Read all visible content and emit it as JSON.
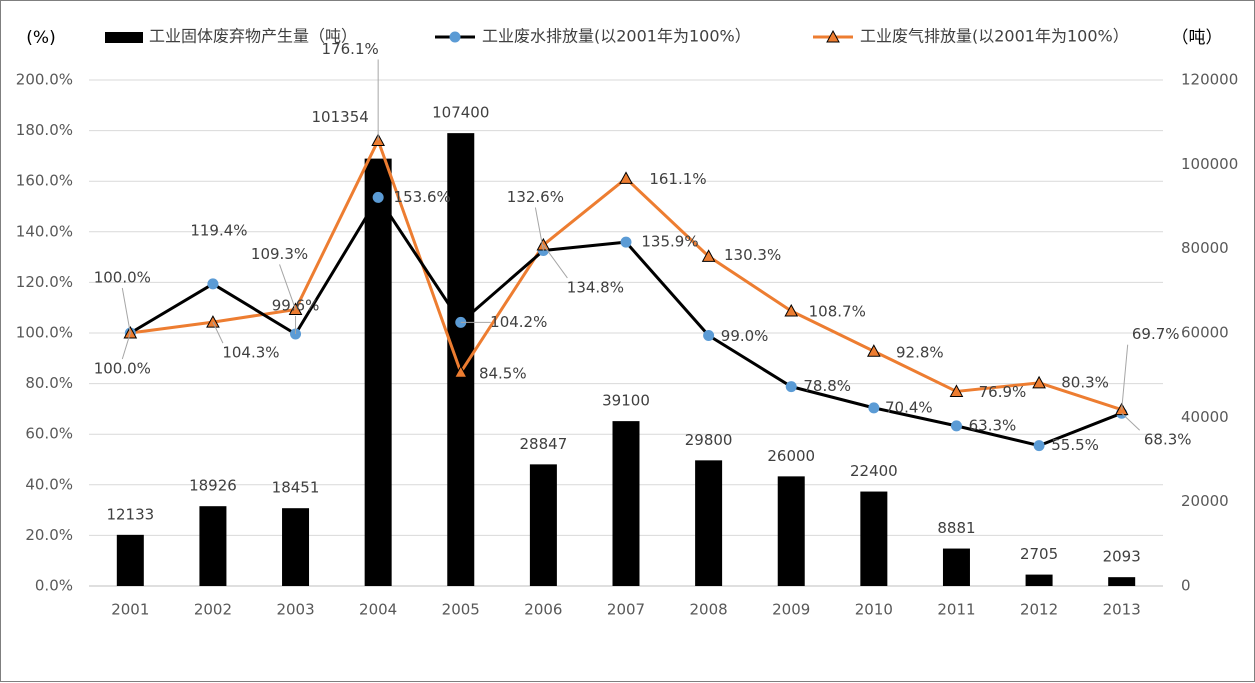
{
  "chart_data": {
    "type": "bar",
    "categories": [
      "2001",
      "2002",
      "2003",
      "2004",
      "2005",
      "2006",
      "2007",
      "2008",
      "2009",
      "2010",
      "2011",
      "2012",
      "2013"
    ],
    "left_axis_unit": "(%)",
    "right_axis_unit": "（吨）",
    "left_ylim": [
      0,
      200
    ],
    "left_ticks": [
      "0.0%",
      "20.0%",
      "40.0%",
      "60.0%",
      "80.0%",
      "100.0%",
      "120.0%",
      "140.0%",
      "160.0%",
      "180.0%",
      "200.0%"
    ],
    "right_ylim": [
      0,
      120000
    ],
    "right_ticks": [
      "0",
      "20000",
      "40000",
      "60000",
      "80000",
      "100000",
      "120000"
    ],
    "grid": true,
    "legend_position": "top",
    "series": [
      {
        "name": "工业固体废弃物产生量（吨）",
        "kind": "bar",
        "axis": "right",
        "color": "#000000",
        "values": [
          12133,
          18926,
          18451,
          101354,
          107400,
          28847,
          39100,
          29800,
          26000,
          22400,
          8881,
          2705,
          2093
        ],
        "labels": [
          "12133",
          "18926",
          "18451",
          "101354",
          "107400",
          "28847",
          "39100",
          "29800",
          "26000",
          "22400",
          "8881",
          "2705",
          "2093"
        ]
      },
      {
        "name": "工业废水排放量(以2001年为100%）",
        "kind": "line",
        "axis": "left",
        "color": "#000000",
        "marker": "circle",
        "marker_color": "#5b9bd5",
        "values": [
          100.0,
          119.4,
          99.6,
          153.6,
          104.2,
          132.6,
          135.9,
          99.0,
          78.8,
          70.4,
          63.3,
          55.5,
          68.3
        ],
        "labels": [
          "100.0%",
          "119.4%",
          "99.6%",
          "153.6%",
          "104.2%",
          "132.6%",
          "135.9%",
          "99.0%",
          "78.8%",
          "70.4%",
          "63.3%",
          "55.5%",
          "68.3%"
        ]
      },
      {
        "name": "工业废气排放量(以2001年为100%）",
        "kind": "line",
        "axis": "left",
        "color": "#ed7d31",
        "marker": "triangle",
        "marker_color": "#ed7d31",
        "values": [
          100.0,
          104.3,
          109.3,
          176.1,
          84.5,
          134.8,
          161.1,
          130.3,
          108.7,
          92.8,
          76.9,
          80.3,
          69.7
        ],
        "labels": [
          "100.0%",
          "104.3%",
          "109.3%",
          "176.1%",
          "84.5%",
          "134.8%",
          "161.1%",
          "130.3%",
          "108.7%",
          "92.8%",
          "76.9%",
          "80.3%",
          "69.7%"
        ]
      }
    ]
  }
}
